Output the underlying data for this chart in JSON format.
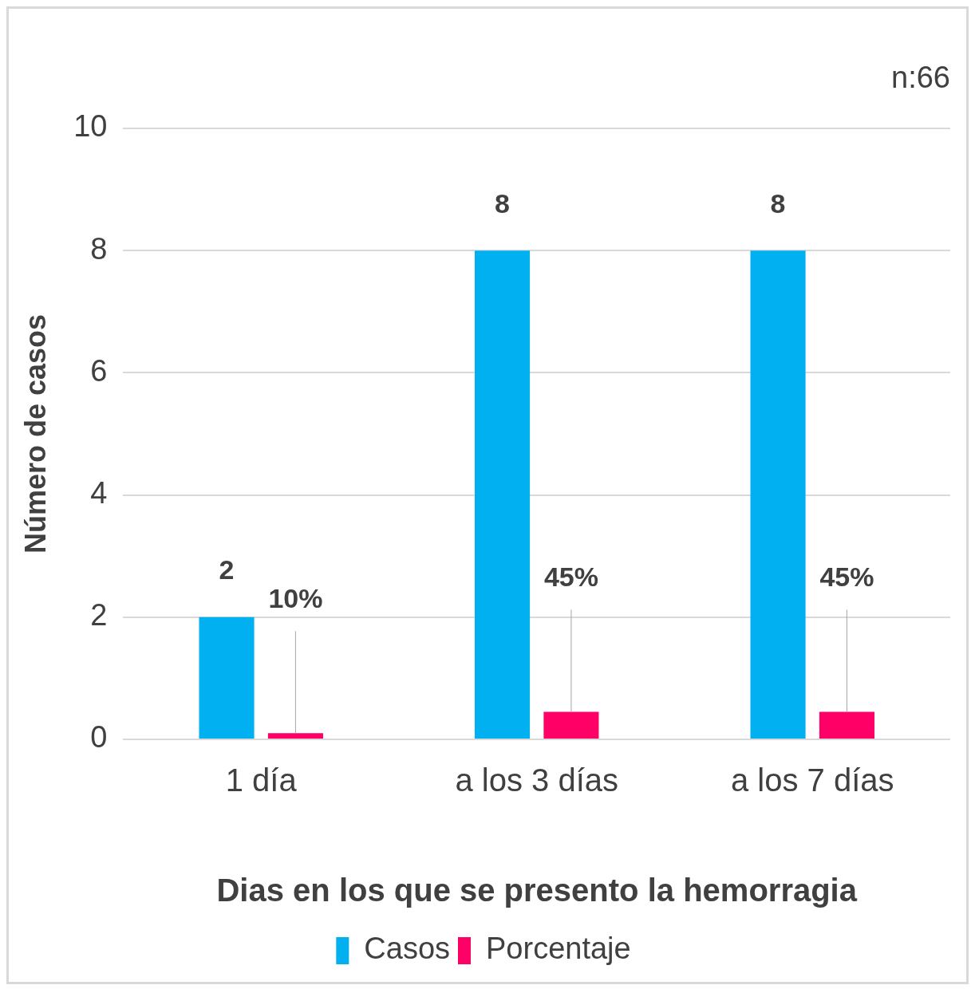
{
  "chart_data": {
    "type": "bar",
    "xlabel": "Dias en los que se presento la hemorragia",
    "ylabel": "Número de casos",
    "annotations": [
      "n:66"
    ],
    "categories": [
      "1 día",
      "a los 3 días",
      "a los 7 días"
    ],
    "series": [
      {
        "name": "Casos",
        "color": "#00b0f0",
        "values": [
          2,
          8,
          8
        ],
        "value_labels": [
          "2",
          "8",
          "8"
        ]
      },
      {
        "name": "Porcentaje",
        "color": "#ff0066",
        "values": [
          0.1,
          0.45,
          0.45
        ],
        "value_labels": [
          "10%",
          "45%",
          "45%"
        ]
      }
    ],
    "ylim": [
      0,
      10
    ],
    "yticks": [
      0,
      2,
      4,
      6,
      8,
      10
    ],
    "grid": "y",
    "legend": "bottom"
  }
}
